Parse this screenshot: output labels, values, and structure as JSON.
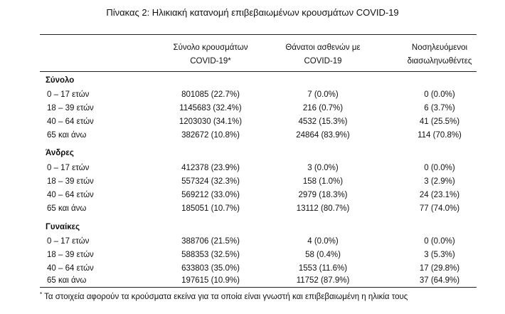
{
  "title": "Πίνακας 2: Ηλικιακή κατανομή επιβεβαιωμένων κρουσμάτων COVID-19",
  "headers": {
    "col1": [
      "Σύνολο κρουσμάτων",
      "COVID-19*"
    ],
    "col2": [
      "Θάνατοι ασθενών με",
      "COVID-19"
    ],
    "col3": [
      "Νοσηλευόμενοι",
      "διασωληνωθέντες"
    ]
  },
  "sections": [
    {
      "name": "Σύνολο",
      "rows": [
        {
          "label": "0 – 17 ετών",
          "cases": "801085 (22.7%)",
          "deaths": "7 (0.0%)",
          "icu": "0 (0.0%)"
        },
        {
          "label": "18 – 39 ετών",
          "cases": "1145683 (32.4%)",
          "deaths": "216 (0.7%)",
          "icu": "6 (3.7%)"
        },
        {
          "label": "40 – 64 ετών",
          "cases": "1203030 (34.1%)",
          "deaths": "4532 (15.3%)",
          "icu": "41 (25.5%)"
        },
        {
          "label": "65 και άνω",
          "cases": "382672 (10.8%)",
          "deaths": "24864 (83.9%)",
          "icu": "114 (70.8%)"
        }
      ]
    },
    {
      "name": "Άνδρες",
      "rows": [
        {
          "label": "0 – 17 ετών",
          "cases": "412378 (23.9%)",
          "deaths": "3 (0.0%)",
          "icu": "0 (0.0%)"
        },
        {
          "label": "18 – 39 ετών",
          "cases": "557324 (32.3%)",
          "deaths": "158 (1.0%)",
          "icu": "3 (2.9%)"
        },
        {
          "label": "40 – 64 ετών",
          "cases": "569212 (33.0%)",
          "deaths": "2979 (18.3%)",
          "icu": "24 (23.1%)"
        },
        {
          "label": "65 και άνω",
          "cases": "185051 (10.7%)",
          "deaths": "13112 (80.7%)",
          "icu": "77 (74.0%)"
        }
      ]
    },
    {
      "name": "Γυναίκες",
      "rows": [
        {
          "label": "0 – 17 ετών",
          "cases": "388706 (21.5%)",
          "deaths": "4 (0.0%)",
          "icu": "0 (0.0%)"
        },
        {
          "label": "18 – 39 ετών",
          "cases": "588353 (32.5%)",
          "deaths": "58 (0.4%)",
          "icu": "3 (5.3%)"
        },
        {
          "label": "40 – 64 ετών",
          "cases": "633803 (35.0%)",
          "deaths": "1553 (11.6%)",
          "icu": "17 (29.8%)"
        },
        {
          "label": "65 και άνω",
          "cases": "197615 (10.9%)",
          "deaths": "11752 (87.9%)",
          "icu": "37 (64.9%)"
        }
      ]
    }
  ],
  "footnote": {
    "marker": "*",
    "text": "Τα στοιχεία αφορούν τα κρούσματα εκείνα για τα οποία είναι γνωστή και επιβεβαιωμένη η ηλικία τους"
  }
}
